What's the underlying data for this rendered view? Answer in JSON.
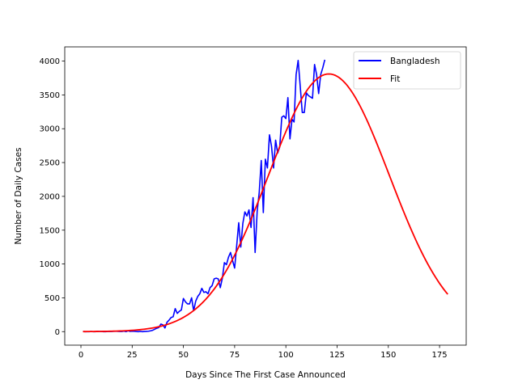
{
  "chart_data": {
    "type": "line",
    "title": "",
    "xlabel": "Days Since The First Case Announced",
    "ylabel": "Number of Daily Cases",
    "xlim": [
      -7.9,
      188
    ],
    "ylim": [
      -200,
      4210
    ],
    "xticks": [
      0,
      25,
      50,
      75,
      100,
      125,
      150,
      175
    ],
    "yticks": [
      0,
      500,
      1000,
      1500,
      2000,
      2500,
      3000,
      3500,
      4000
    ],
    "grid": false,
    "legend_position": "top-right",
    "series": [
      {
        "name": "Bangladesh",
        "color": "#0000ff",
        "x": [
          1,
          2,
          3,
          4,
          5,
          6,
          7,
          8,
          9,
          10,
          11,
          12,
          13,
          14,
          15,
          16,
          17,
          18,
          19,
          20,
          21,
          22,
          23,
          24,
          25,
          26,
          27,
          28,
          29,
          30,
          31,
          32,
          33,
          34,
          35,
          36,
          37,
          38,
          39,
          40,
          41,
          42,
          43,
          44,
          45,
          46,
          47,
          48,
          49,
          50,
          51,
          52,
          53,
          54,
          55,
          56,
          57,
          58,
          59,
          60,
          61,
          62,
          63,
          64,
          65,
          66,
          67,
          68,
          69,
          70,
          71,
          72,
          73,
          74,
          75,
          76,
          77,
          78,
          79,
          80,
          81,
          82,
          83,
          84,
          85,
          86,
          87,
          88,
          89,
          90,
          91,
          92,
          93,
          94,
          95,
          96,
          97,
          98,
          99,
          100,
          101,
          102,
          103,
          104,
          105,
          106,
          107,
          108,
          109,
          110,
          111,
          112,
          113,
          114,
          115,
          116,
          117,
          118,
          119
        ],
        "y": [
          3,
          0,
          0,
          0,
          2,
          0,
          0,
          4,
          3,
          2,
          0,
          0,
          2,
          4,
          2,
          5,
          6,
          3,
          2,
          2,
          8,
          0,
          12,
          3,
          6,
          5,
          2,
          0,
          3,
          0,
          2,
          4,
          6,
          12,
          20,
          35,
          50,
          60,
          112,
          100,
          54,
          139,
          170,
          209,
          220,
          340,
          270,
          300,
          320,
          490,
          440,
          410,
          410,
          500,
          310,
          450,
          520,
          560,
          640,
          580,
          590,
          560,
          650,
          680,
          780,
          790,
          780,
          650,
          790,
          1020,
          990,
          1100,
          1170,
          1050,
          940,
          1270,
          1610,
          1250,
          1600,
          1770,
          1710,
          1800,
          1540,
          1980,
          1170,
          1780,
          2060,
          2530,
          1760,
          2550,
          2420,
          2910,
          2740,
          2420,
          2830,
          2640,
          2730,
          3170,
          3190,
          3150,
          3460,
          2850,
          3140,
          3100,
          3800,
          4010,
          3630,
          3240,
          3240,
          3530,
          3490,
          3470,
          3450,
          3950,
          3800,
          3520,
          3800,
          3900,
          4020
        ]
      },
      {
        "name": "Fit",
        "color": "#ff0000",
        "model": "gaussian",
        "amplitude": 3810,
        "center": 121,
        "sigma": 29.5,
        "x_range": [
          1,
          179
        ]
      }
    ]
  }
}
